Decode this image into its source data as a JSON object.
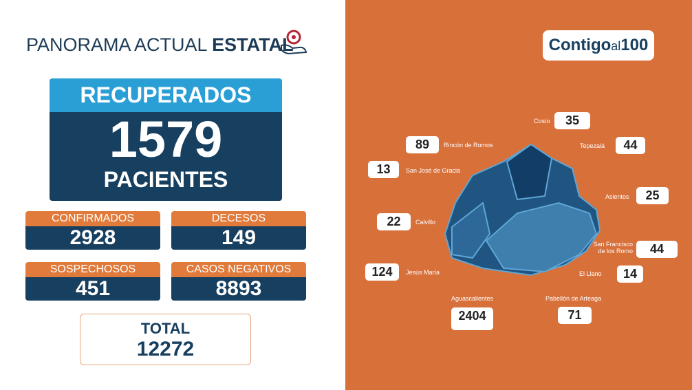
{
  "header": {
    "title_light": "PANORAMA ACTUAL",
    "title_bold": "ESTATAL"
  },
  "recuperados": {
    "label": "RECUPERADOS",
    "value": 1579,
    "unit": "PACIENTES"
  },
  "stats": [
    {
      "label": "CONFIRMADOS",
      "value": 2928
    },
    {
      "label": "DECESOS",
      "value": 149
    },
    {
      "label": "SOSPECHOSOS",
      "value": 451
    },
    {
      "label": "CASOS NEGATIVOS",
      "value": 8893
    }
  ],
  "total": {
    "label": "TOTAL",
    "value": 12272
  },
  "logo": {
    "part1": "Contigo",
    "part2": "al",
    "part3": "100"
  },
  "municipalities": [
    {
      "name": "Cosío",
      "value": 35
    },
    {
      "name": "Rincón de Romos",
      "value": 89
    },
    {
      "name": "Tepezalá",
      "value": 44
    },
    {
      "name": "San José de Gracia",
      "value": 13
    },
    {
      "name": "Asientos",
      "value": 25
    },
    {
      "name": "Calvillo",
      "value": 22
    },
    {
      "name": "San Francisco de los Romo",
      "value": 44
    },
    {
      "name": "Jesús María",
      "value": 124
    },
    {
      "name": "El Llano",
      "value": 14
    },
    {
      "name": "Aguascalientes",
      "value": 2404
    },
    {
      "name": "Pabellón de Arteaga",
      "value": 71
    }
  ]
}
